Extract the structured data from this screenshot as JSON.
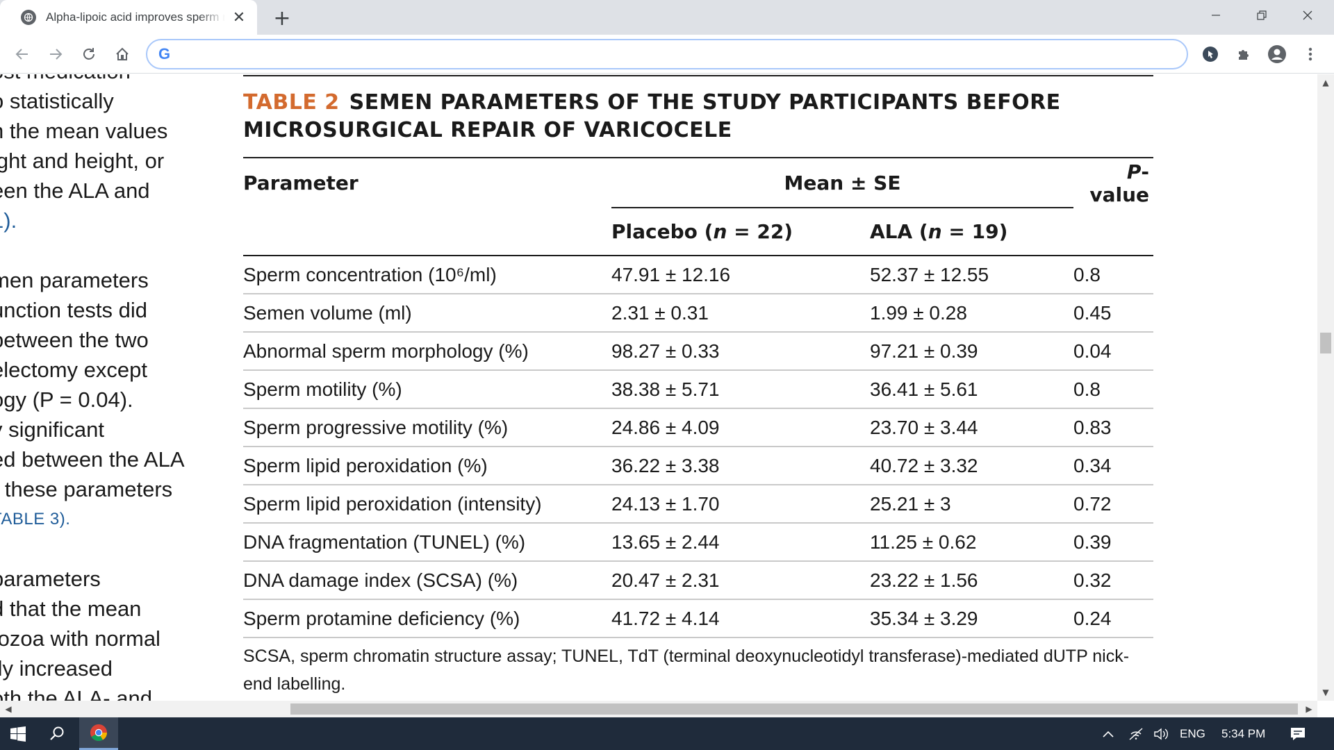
{
  "browser": {
    "tab_title": "Alpha-lipoic acid improves sperm motility in infertile men after varicocelectomy",
    "address_placeholder": "",
    "google_logo": "G"
  },
  "left_column": {
    "lines": [
      "ost medication",
      "o statistically",
      "n the mean values",
      "ight and height, or",
      "een the ALA and",
      "1).",
      "men parameters",
      "unction tests did",
      "between the two",
      "electomy except",
      "ogy (P = 0.04).",
      "y significant",
      "ed between the ALA",
      "r these parameters",
      "TABLE 3).",
      "parameters",
      "d that the mean",
      "tozoa with normal",
      "tly increased",
      "oth the ALA- and"
    ]
  },
  "table": {
    "caption_num": "TABLE 2",
    "caption_line1": "SEMEN PARAMETERS OF THE STUDY PARTICIPANTS BEFORE",
    "caption_line2": "MICROSURGICAL REPAIR OF VARICOCELE",
    "headers": {
      "parameter": "Parameter",
      "mean_se": "Mean ± SE",
      "p_value_p": "P",
      "p_value_rest": "-value",
      "placebo_label": "Placebo (",
      "placebo_n": "n",
      "placebo_count": " = 22)",
      "ala_label": "ALA (",
      "ala_n": "n",
      "ala_count": " = 19)"
    },
    "rows": [
      {
        "parameter": "Sperm concentration (10⁶/ml)",
        "placebo": "47.91 ± 12.16",
        "ala": "52.37 ± 12.55",
        "p": "0.8"
      },
      {
        "parameter": "Semen volume (ml)",
        "placebo": "2.31 ± 0.31",
        "ala": "1.99 ± 0.28",
        "p": "0.45"
      },
      {
        "parameter": "Abnormal sperm morphology (%)",
        "placebo": "98.27 ± 0.33",
        "ala": "97.21 ± 0.39",
        "p": "0.04"
      },
      {
        "parameter": "Sperm motility (%)",
        "placebo": "38.38 ± 5.71",
        "ala": "36.41 ± 5.61",
        "p": "0.8"
      },
      {
        "parameter": "Sperm progressive motility (%)",
        "placebo": "24.86 ± 4.09",
        "ala": "23.70 ± 3.44",
        "p": "0.83"
      },
      {
        "parameter": "Sperm lipid peroxidation (%)",
        "placebo": "36.22 ± 3.38",
        "ala": "40.72 ± 3.32",
        "p": "0.34"
      },
      {
        "parameter": "Sperm lipid peroxidation (intensity)",
        "placebo": "24.13 ± 1.70",
        "ala": "25.21 ± 3",
        "p": "0.72"
      },
      {
        "parameter": "DNA fragmentation (TUNEL) (%)",
        "placebo": "13.65 ± 2.44",
        "ala": "11.25 ± 0.62",
        "p": "0.39"
      },
      {
        "parameter": "DNA damage index (SCSA) (%)",
        "placebo": "20.47 ± 2.31",
        "ala": "23.22 ± 1.56",
        "p": "0.32"
      },
      {
        "parameter": "Sperm protamine deficiency (%)",
        "placebo": "41.72 ± 4.14",
        "ala": "35.34 ± 3.29",
        "p": "0.24"
      }
    ],
    "footnote": "SCSA, sperm chromatin structure assay; TUNEL, TdT (terminal deoxynucleotidyl transferase)-mediated dUTP nick-end labelling."
  },
  "taskbar": {
    "language": "ENG",
    "time": "5:34 PM"
  },
  "colors": {
    "caption_accent": "#d36a2e",
    "link": "#1f5c99",
    "taskbar_bg": "#1f2b3b"
  }
}
